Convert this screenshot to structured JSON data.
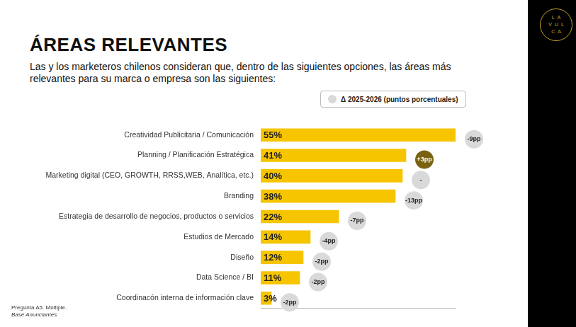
{
  "chart_data": {
    "type": "bar",
    "title": "ÁREAS RELEVANTES",
    "subtitle": "Las y los marketeros chilenos consideran que, dentro de las siguientes opciones, las áreas más relevantes para su marca o empresa son las siguientes:",
    "categories": [
      "Creatividad Publicitaria / Comunicación",
      "Planning / Planificación Estratégica",
      "Marketing digital (CEO, GROWTH, RRSS,WEB, Analítica, etc.)",
      "Branding",
      "Estrategia de desarrollo de negocios, productos o servicios",
      "Estudios de Mercado",
      "Diseño",
      "Data Science / BI",
      "Coordinacón interna de información clave"
    ],
    "values": [
      55,
      41,
      40,
      38,
      22,
      14,
      12,
      11,
      3
    ],
    "value_labels": [
      "55%",
      "41%",
      "40%",
      "38%",
      "22%",
      "14%",
      "12%",
      "11%",
      "3%"
    ],
    "color": "#f7c400",
    "orientation": "horizontal",
    "data_labels": true,
    "grid": false,
    "tick_labels": "y",
    "xlim": [
      0,
      55
    ],
    "delta": {
      "name": "Δ 2025-2026 (puntos porcentuales)",
      "values": [
        -9,
        3,
        0,
        -13,
        -7,
        -4,
        -2,
        -2,
        -2
      ],
      "value_labels": [
        "-9pp",
        "+3pp",
        "-",
        "-13pp",
        "-7pp",
        "-4pp",
        "-2pp",
        "-2pp",
        "-2pp"
      ],
      "colors": [
        "#d9d9d9",
        "#7a6212",
        "#d9d9d9",
        "#d9d9d9",
        "#d9d9d9",
        "#d9d9d9",
        "#d9d9d9",
        "#d9d9d9",
        "#d9d9d9"
      ]
    },
    "footnote": [
      "Pregunta A5. Múltiple.",
      "Base Anunciantes"
    ],
    "logo": [
      "LA",
      "VUL",
      "CA"
    ]
  }
}
